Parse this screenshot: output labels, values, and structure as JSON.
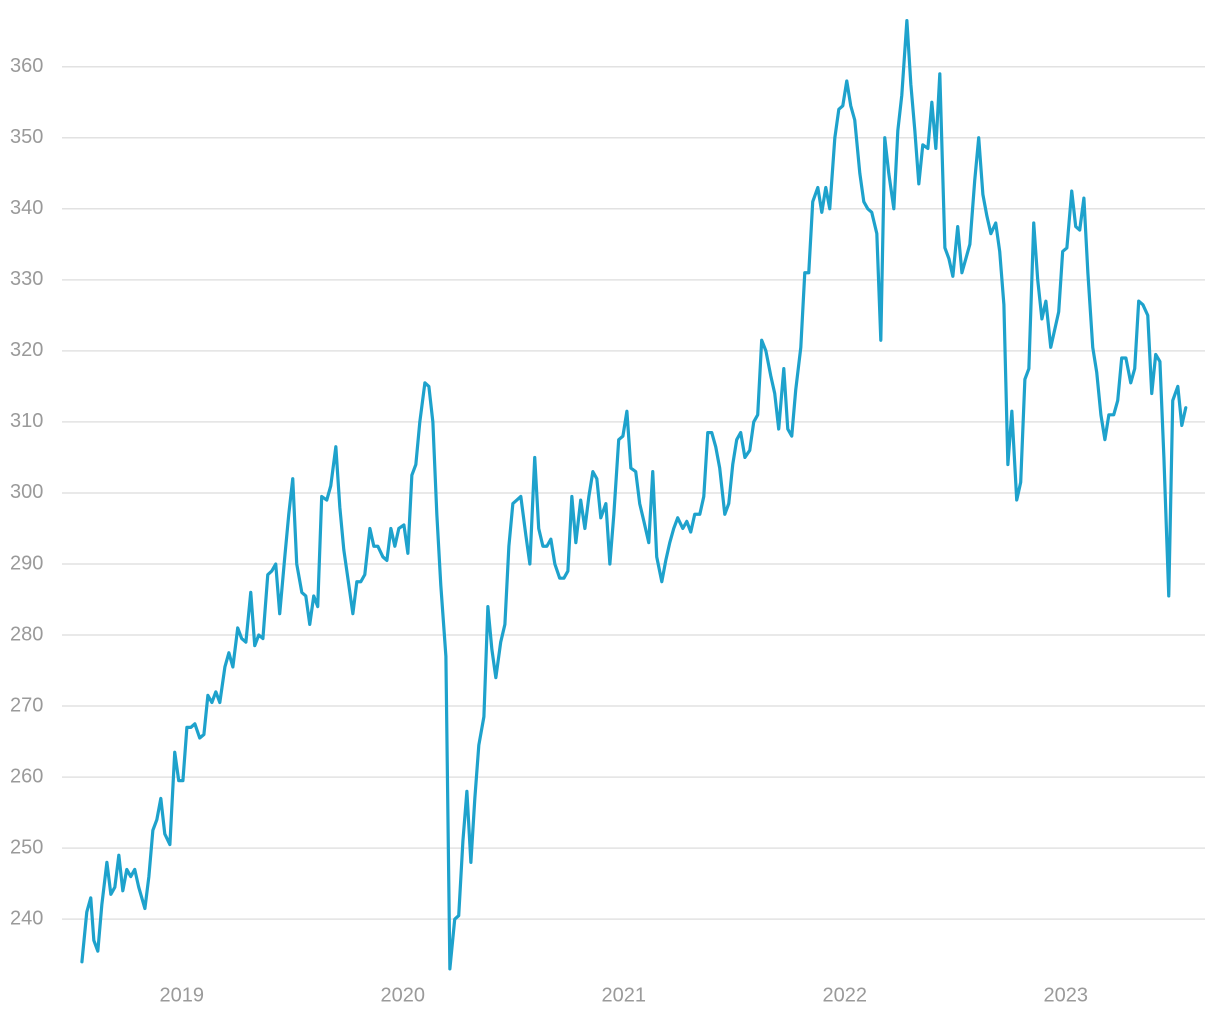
{
  "chart_data": {
    "type": "line",
    "color": "#1ea2cc",
    "grid": true,
    "xlim": [
      2018.485,
      2023.63
    ],
    "xticks": [
      2019,
      2020,
      2021,
      2022,
      2023
    ],
    "ylim": [
      232,
      367
    ],
    "yticks": [
      240,
      250,
      260,
      270,
      280,
      290,
      300,
      310,
      320,
      330,
      340,
      350,
      360
    ],
    "x": [
      2018.548,
      2018.57,
      2018.588,
      2018.602,
      2018.62,
      2018.638,
      2018.661,
      2018.679,
      2018.697,
      2018.715,
      2018.733,
      2018.751,
      2018.769,
      2018.787,
      2018.805,
      2018.833,
      2018.851,
      2018.869,
      2018.887,
      2018.905,
      2018.923,
      2018.946,
      2018.968,
      2018.986,
      2019.005,
      2019.023,
      2019.041,
      2019.059,
      2019.081,
      2019.1,
      2019.118,
      2019.136,
      2019.154,
      2019.172,
      2019.195,
      2019.213,
      2019.231,
      2019.253,
      2019.271,
      2019.29,
      2019.312,
      2019.33,
      2019.348,
      2019.367,
      2019.389,
      2019.407,
      2019.425,
      2019.443,
      2019.466,
      2019.484,
      2019.502,
      2019.52,
      2019.543,
      2019.561,
      2019.579,
      2019.597,
      2019.615,
      2019.633,
      2019.656,
      2019.674,
      2019.697,
      2019.715,
      2019.733,
      2019.756,
      2019.774,
      2019.792,
      2019.81,
      2019.828,
      2019.851,
      2019.869,
      2019.887,
      2019.91,
      2019.928,
      2019.946,
      2019.964,
      2019.982,
      2020.005,
      2020.023,
      2020.041,
      2020.059,
      2020.077,
      2020.1,
      2020.118,
      2020.136,
      2020.154,
      2020.172,
      2020.195,
      2020.213,
      2020.235,
      2020.253,
      2020.272,
      2020.29,
      2020.308,
      2020.326,
      2020.344,
      2020.367,
      2020.385,
      2020.403,
      2020.421,
      2020.443,
      2020.462,
      2020.48,
      2020.498,
      2020.516,
      2020.534,
      2020.557,
      2020.575,
      2020.597,
      2020.615,
      2020.634,
      2020.652,
      2020.67,
      2020.688,
      2020.71,
      2020.729,
      2020.747,
      2020.765,
      2020.783,
      2020.805,
      2020.824,
      2020.842,
      2020.86,
      2020.878,
      2020.896,
      2020.919,
      2020.937,
      2020.955,
      2020.977,
      2020.996,
      2021.014,
      2021.032,
      2021.054,
      2021.072,
      2021.091,
      2021.113,
      2021.131,
      2021.149,
      2021.172,
      2021.19,
      2021.208,
      2021.226,
      2021.244,
      2021.267,
      2021.285,
      2021.303,
      2021.321,
      2021.344,
      2021.362,
      2021.38,
      2021.398,
      2021.416,
      2021.434,
      2021.457,
      2021.475,
      2021.493,
      2021.511,
      2021.529,
      2021.548,
      2021.57,
      2021.588,
      2021.606,
      2021.624,
      2021.643,
      2021.665,
      2021.683,
      2021.701,
      2021.724,
      2021.742,
      2021.76,
      2021.778,
      2021.801,
      2021.819,
      2021.837,
      2021.855,
      2021.878,
      2021.896,
      2021.914,
      2021.932,
      2021.955,
      2021.973,
      2021.991,
      2022.009,
      2022.027,
      2022.045,
      2022.068,
      2022.086,
      2022.104,
      2022.122,
      2022.145,
      2022.163,
      2022.181,
      2022.199,
      2022.222,
      2022.24,
      2022.258,
      2022.281,
      2022.299,
      2022.317,
      2022.335,
      2022.353,
      2022.376,
      2022.394,
      2022.412,
      2022.43,
      2022.453,
      2022.471,
      2022.489,
      2022.511,
      2022.53,
      2022.548,
      2022.566,
      2022.588,
      2022.606,
      2022.625,
      2022.643,
      2022.661,
      2022.683,
      2022.701,
      2022.72,
      2022.738,
      2022.756,
      2022.778,
      2022.796,
      2022.815,
      2022.833,
      2022.855,
      2022.873,
      2022.892,
      2022.91,
      2022.932,
      2022.95,
      2022.968,
      2022.986,
      2023.005,
      2023.027,
      2023.045,
      2023.063,
      2023.082,
      2023.1,
      2023.122,
      2023.14,
      2023.159,
      2023.177,
      2023.195,
      2023.217,
      2023.235,
      2023.253,
      2023.272,
      2023.294,
      2023.312,
      2023.33,
      2023.349,
      2023.371,
      2023.389,
      2023.407,
      2023.426,
      2023.444,
      2023.466,
      2023.484,
      2023.507,
      2023.525,
      2023.543
    ],
    "values": [
      234,
      241,
      243,
      237,
      235.5,
      242,
      248,
      243.5,
      244.5,
      249,
      244,
      247,
      246,
      247,
      244.5,
      241.5,
      246,
      252.5,
      254,
      257,
      252,
      250.5,
      263.5,
      259.5,
      259.5,
      267,
      267,
      267.5,
      265.5,
      266,
      271.5,
      270.5,
      272,
      270.5,
      275.5,
      277.5,
      275.5,
      281,
      279.5,
      279,
      286,
      278.5,
      280,
      279.5,
      288.5,
      289,
      290,
      283,
      291,
      297,
      302,
      290,
      286,
      285.5,
      281.5,
      285.5,
      284,
      299.5,
      299,
      301,
      306.5,
      298,
      292,
      287,
      283,
      287.5,
      287.5,
      288.5,
      295,
      292.5,
      292.5,
      291,
      290.5,
      295,
      292.5,
      295,
      295.5,
      291.5,
      302.5,
      304,
      310,
      315.5,
      315,
      310,
      297,
      287,
      277,
      233,
      240,
      240.5,
      251,
      258,
      248,
      257,
      264.5,
      268.5,
      284,
      278,
      274,
      279,
      281.5,
      292.5,
      298.5,
      299,
      299.5,
      294,
      290,
      305,
      295,
      292.5,
      292.5,
      293.5,
      290,
      288,
      288,
      289,
      299.5,
      293,
      299,
      295,
      299.5,
      303,
      302,
      296.5,
      298.5,
      290,
      297,
      307.5,
      308,
      311.5,
      303.5,
      303,
      298.5,
      296,
      293,
      303,
      291,
      287.5,
      290.5,
      293,
      295,
      296.5,
      295,
      296,
      294.5,
      297,
      297,
      299.5,
      308.5,
      308.5,
      306.5,
      303.5,
      297,
      298.5,
      304,
      307.5,
      308.5,
      305,
      306,
      310,
      311,
      321.5,
      320,
      316.5,
      314,
      309,
      317.5,
      309,
      308,
      314.5,
      320.5,
      331,
      331,
      341,
      343,
      339.5,
      343,
      340,
      350,
      354,
      354.5,
      358,
      354.5,
      352.5,
      345,
      341,
      340,
      339.5,
      336.5,
      321.5,
      350,
      345,
      340,
      351,
      356,
      366.5,
      357.5,
      351,
      343.5,
      349,
      348.5,
      355,
      348.5,
      359,
      334.5,
      333,
      330.5,
      337.5,
      331,
      333,
      335,
      344,
      350,
      342,
      339,
      336.5,
      338,
      334,
      326.5,
      304,
      311.5,
      299,
      301.5,
      316,
      317.5,
      338,
      330,
      324.5,
      327,
      320.5,
      323,
      325.5,
      334,
      334.5,
      342.5,
      337.5,
      337,
      341.5,
      331,
      320.5,
      317,
      311,
      307.5,
      311,
      311,
      313,
      319,
      319,
      315.5,
      317.5,
      327,
      326.5,
      325,
      314,
      319.5,
      318.5,
      305,
      285.5,
      313,
      315,
      309.5,
      312
    ]
  }
}
